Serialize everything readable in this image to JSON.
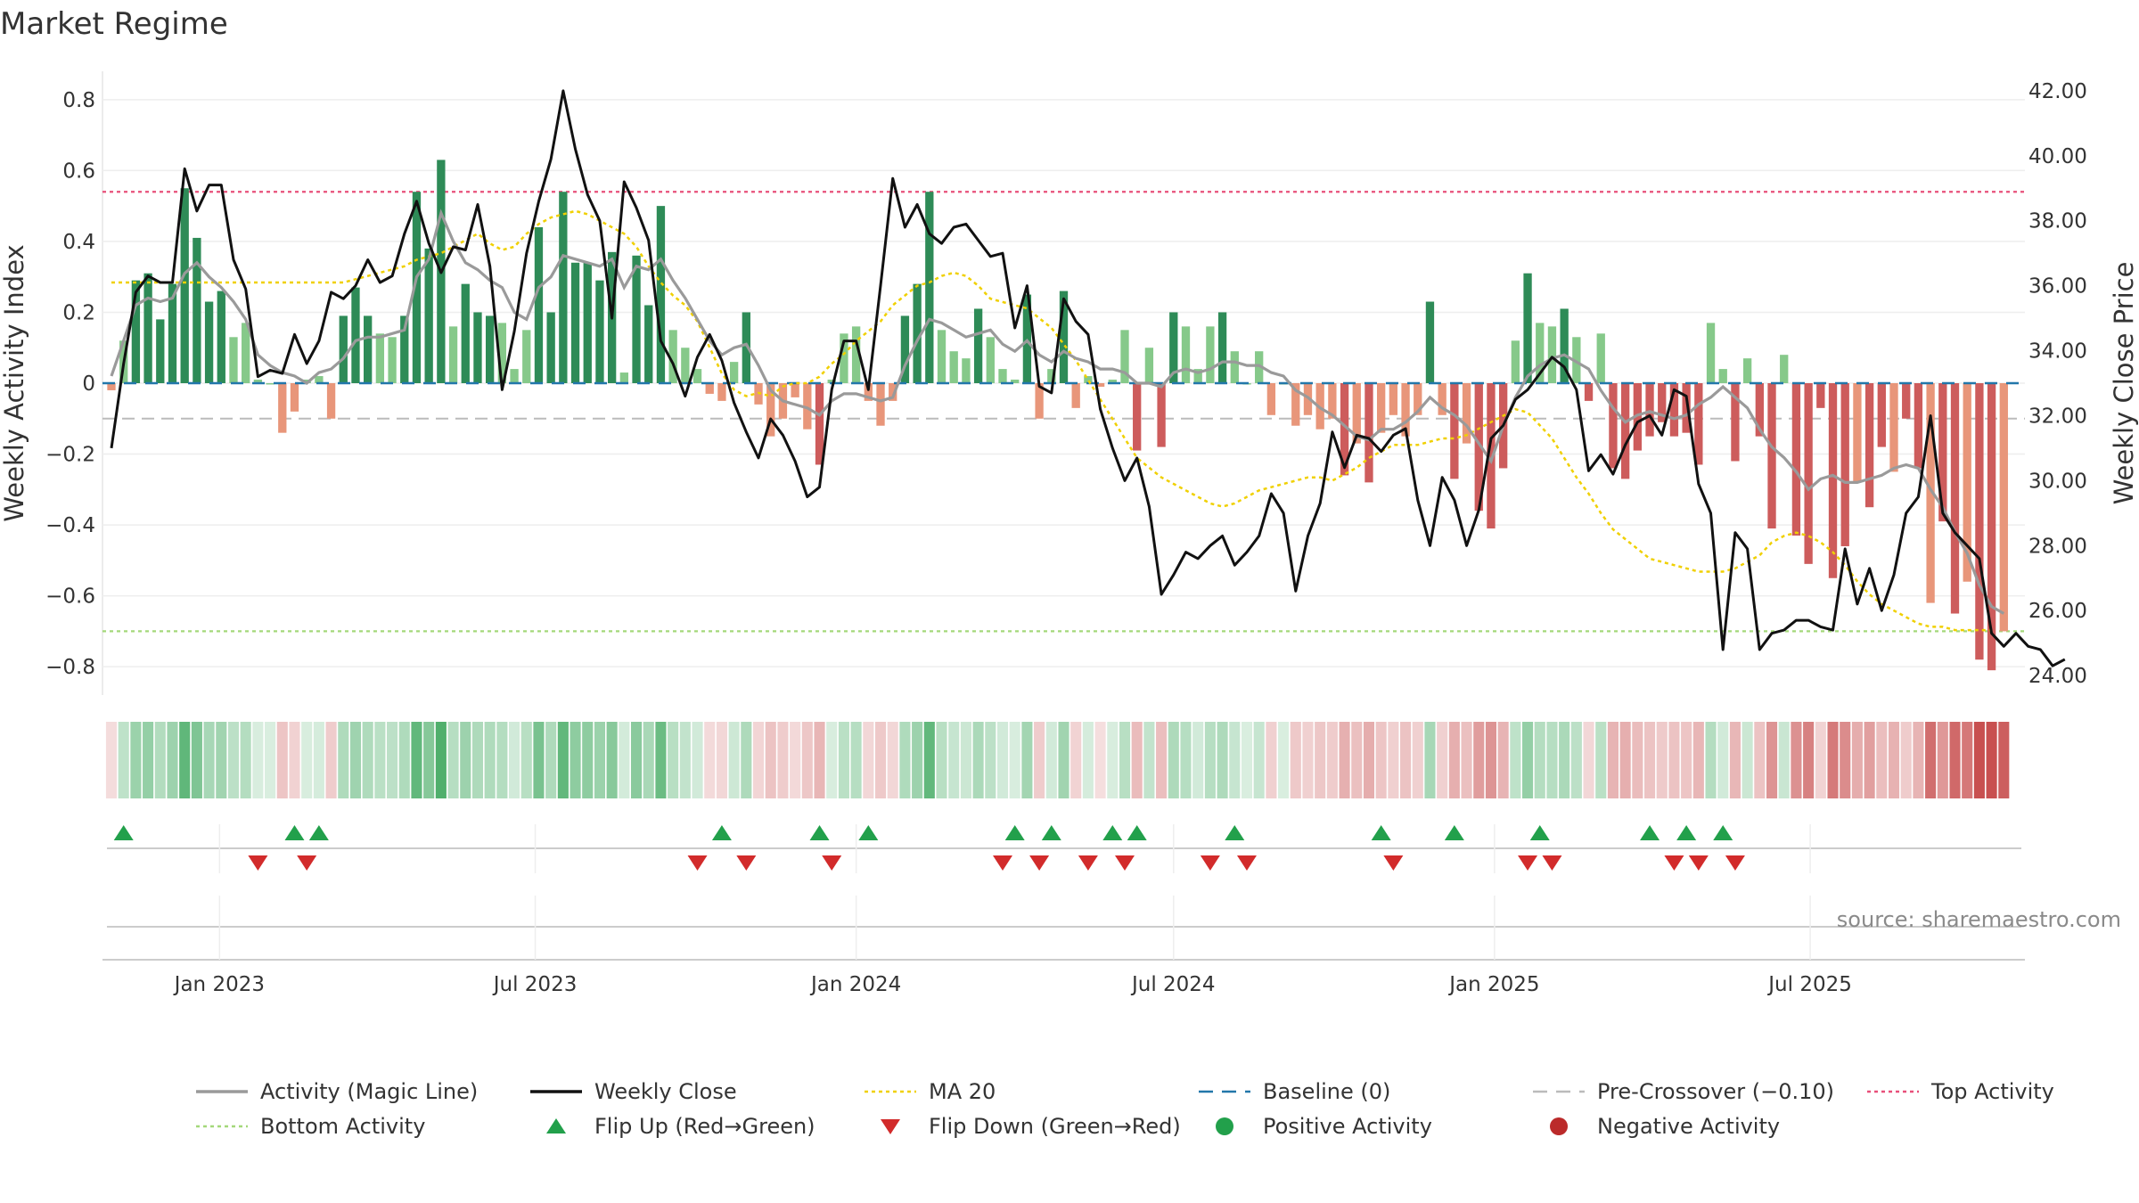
{
  "title": "Market Regime",
  "source": "source: sharemaestro.com",
  "chart_data": {
    "type": "bar",
    "start_date": "2022-10-31",
    "week_count": 157,
    "y_left": {
      "label": "Weekly Activity Index",
      "ylim": [
        -0.88,
        0.88
      ],
      "ticks": [
        0.8,
        0.6,
        0.4,
        0.2,
        0,
        -0.2,
        -0.4,
        -0.6,
        -0.8
      ],
      "tick_labels": [
        "0.8",
        "0.6",
        "0.4",
        "0.2",
        "0",
        "−0.2",
        "−0.4",
        "−0.6",
        "−0.8"
      ]
    },
    "y_right": {
      "label": "Weekly Close Price",
      "ylim": [
        23.4,
        42.6
      ],
      "ticks": [
        42,
        40,
        38,
        36,
        34,
        32,
        30,
        28,
        26,
        24
      ],
      "tick_labels": [
        "42.00",
        "40.00",
        "38.00",
        "36.00",
        "34.00",
        "32.00",
        "30.00",
        "28.00",
        "26.00",
        "24.00"
      ]
    },
    "x_ticks": [
      {
        "date": "2023-01-01",
        "label": "Jan 2023"
      },
      {
        "date": "2023-07-01",
        "label": "Jul 2023"
      },
      {
        "date": "2024-01-01",
        "label": "Jan 2024"
      },
      {
        "date": "2024-07-01",
        "label": "Jul 2024"
      },
      {
        "date": "2025-01-01",
        "label": "Jan 2025"
      },
      {
        "date": "2025-07-01",
        "label": "Jul 2025"
      }
    ],
    "reference_lines": {
      "top_activity": 0.54,
      "bottom_activity": -0.7,
      "baseline": 0,
      "pre_crossover": -0.1
    },
    "series": [
      {
        "name": "Activity",
        "values": [
          -0.02,
          0.12,
          0.29,
          0.31,
          0.18,
          0.28,
          0.55,
          0.41,
          0.23,
          0.26,
          0.13,
          0.17,
          0.01,
          0.0,
          -0.14,
          -0.08,
          0.01,
          0.02,
          -0.1,
          0.19,
          0.27,
          0.19,
          0.14,
          0.13,
          0.19,
          0.54,
          0.38,
          0.63,
          0.16,
          0.28,
          0.2,
          0.19,
          0.17,
          0.04,
          0.15,
          0.44,
          0.2,
          0.54,
          0.34,
          0.34,
          0.29,
          0.37,
          0.03,
          0.36,
          0.22,
          0.5,
          0.15,
          0.1,
          0.04,
          -0.03,
          -0.05,
          0.06,
          0.2,
          -0.06,
          -0.15,
          -0.1,
          -0.04,
          -0.13,
          -0.23,
          0.01,
          0.14,
          0.16,
          -0.05,
          -0.12,
          -0.05,
          0.19,
          0.28,
          0.54,
          0.15,
          0.09,
          0.07,
          0.21,
          0.13,
          0.04,
          0.01,
          0.25,
          -0.1,
          0.04,
          0.26,
          -0.07,
          0.02,
          -0.01,
          0.01,
          0.15,
          -0.19,
          0.1,
          -0.18,
          0.2,
          0.16,
          0.04,
          0.16,
          0.2,
          0.09,
          0.0,
          0.09,
          -0.09,
          0.0,
          -0.12,
          -0.09,
          -0.13,
          -0.1,
          -0.26,
          -0.17,
          -0.28,
          -0.14,
          -0.09,
          -0.15,
          -0.09,
          0.23,
          -0.09,
          -0.27,
          -0.17,
          -0.36,
          -0.41,
          -0.24,
          0.12,
          0.31,
          0.17,
          0.16,
          0.21,
          0.13,
          -0.05,
          0.14,
          -0.24,
          -0.27,
          -0.19,
          -0.15,
          -0.11,
          -0.15,
          -0.14,
          -0.23,
          0.17,
          0.04,
          -0.22,
          0.07,
          -0.15,
          -0.41,
          0.08,
          -0.43,
          -0.51,
          -0.07,
          -0.55,
          -0.46,
          -0.28,
          -0.35,
          -0.18,
          -0.25,
          -0.1,
          -0.24,
          -0.62,
          -0.39,
          -0.65,
          -0.56,
          -0.78,
          -0.81,
          -0.7
        ]
      },
      {
        "name": "Activity (Magic Line)",
        "values": [
          0.02,
          0.12,
          0.22,
          0.24,
          0.23,
          0.24,
          0.31,
          0.34,
          0.3,
          0.27,
          0.23,
          0.18,
          0.08,
          0.05,
          0.03,
          0.02,
          0.0,
          0.03,
          0.04,
          0.07,
          0.12,
          0.13,
          0.13,
          0.14,
          0.15,
          0.3,
          0.35,
          0.48,
          0.4,
          0.34,
          0.32,
          0.29,
          0.27,
          0.2,
          0.18,
          0.27,
          0.3,
          0.36,
          0.35,
          0.34,
          0.33,
          0.35,
          0.27,
          0.33,
          0.32,
          0.35,
          0.29,
          0.24,
          0.18,
          0.12,
          0.08,
          0.1,
          0.11,
          0.05,
          -0.02,
          -0.05,
          -0.06,
          -0.07,
          -0.09,
          -0.05,
          -0.03,
          -0.03,
          -0.04,
          -0.05,
          -0.04,
          0.05,
          0.12,
          0.18,
          0.17,
          0.15,
          0.13,
          0.14,
          0.15,
          0.11,
          0.09,
          0.12,
          0.08,
          0.06,
          0.09,
          0.07,
          0.06,
          0.04,
          0.04,
          0.03,
          0.0,
          0.0,
          -0.01,
          0.03,
          0.04,
          0.03,
          0.04,
          0.06,
          0.06,
          0.05,
          0.05,
          0.03,
          0.02,
          -0.02,
          -0.04,
          -0.07,
          -0.09,
          -0.12,
          -0.15,
          -0.16,
          -0.13,
          -0.13,
          -0.11,
          -0.08,
          -0.04,
          -0.07,
          -0.09,
          -0.12,
          -0.17,
          -0.22,
          -0.12,
          -0.04,
          0.02,
          0.05,
          0.07,
          0.08,
          0.06,
          0.04,
          -0.02,
          -0.07,
          -0.11,
          -0.09,
          -0.08,
          -0.09,
          -0.1,
          -0.09,
          -0.06,
          -0.04,
          -0.01,
          -0.04,
          -0.07,
          -0.13,
          -0.18,
          -0.21,
          -0.25,
          -0.3,
          -0.27,
          -0.26,
          -0.28,
          -0.28,
          -0.27,
          -0.26,
          -0.24,
          -0.23,
          -0.24,
          -0.3,
          -0.35,
          -0.42,
          -0.48,
          -0.57,
          -0.63,
          -0.65
        ]
      },
      {
        "name": "Weekly Close",
        "values": [
          31.0,
          33.6,
          35.8,
          36.3,
          36.1,
          36.1,
          39.6,
          38.3,
          39.1,
          39.1,
          36.8,
          35.9,
          33.2,
          33.4,
          33.3,
          34.5,
          33.6,
          34.3,
          35.8,
          35.6,
          36.0,
          36.8,
          36.1,
          36.3,
          37.6,
          38.6,
          37.3,
          36.4,
          37.2,
          37.1,
          38.5,
          36.6,
          32.8,
          34.6,
          37.0,
          38.6,
          39.9,
          42.0,
          40.2,
          38.8,
          38.0,
          35.0,
          39.2,
          38.4,
          37.4,
          34.3,
          33.6,
          32.6,
          33.8,
          34.5,
          33.7,
          32.4,
          31.5,
          30.7,
          31.9,
          31.4,
          30.6,
          29.5,
          29.8,
          32.8,
          34.3,
          34.3,
          32.8,
          36.0,
          39.3,
          37.8,
          38.5,
          37.6,
          37.3,
          37.8,
          37.9,
          37.4,
          36.9,
          37.0,
          34.7,
          36.0,
          32.9,
          32.7,
          35.6,
          34.9,
          34.5,
          32.2,
          31.0,
          30.0,
          30.7,
          29.2,
          26.5,
          27.1,
          27.8,
          27.6,
          28.0,
          28.3,
          27.4,
          27.8,
          28.3,
          29.6,
          29.0,
          26.6,
          28.3,
          29.3,
          31.5,
          30.4,
          31.4,
          31.3,
          30.9,
          31.4,
          31.6,
          29.4,
          28.0,
          30.1,
          29.4,
          28.0,
          29.1,
          31.3,
          31.7,
          32.5,
          32.8,
          33.3,
          33.8,
          33.5,
          32.8,
          30.3,
          30.8,
          30.2,
          31.1,
          31.8,
          32.0,
          31.4,
          32.8,
          32.6,
          29.9,
          29.0,
          24.8,
          28.4,
          27.9,
          24.8,
          25.3,
          25.4,
          25.7,
          25.7,
          25.5,
          25.4,
          27.9,
          26.2,
          27.3,
          26.0,
          27.1,
          29.0,
          29.5,
          32.0,
          29.0,
          28.4,
          28.0,
          27.6,
          25.3,
          24.9,
          25.3,
          24.9,
          24.8,
          24.3,
          24.5
        ]
      },
      {
        "name": "MA 20",
        "values": [
          36.1,
          36.1,
          36.1,
          36.1,
          36.1,
          36.1,
          36.1,
          36.1,
          36.1,
          36.1,
          36.1,
          36.1,
          36.1,
          36.1,
          36.1,
          36.1,
          36.1,
          36.1,
          36.1,
          36.1,
          36.2,
          36.3,
          36.4,
          36.5,
          36.6,
          36.8,
          36.9,
          37.0,
          37.2,
          37.4,
          37.6,
          37.3,
          37.1,
          37.2,
          37.6,
          37.9,
          38.1,
          38.2,
          38.3,
          38.2,
          38.0,
          37.8,
          37.6,
          37.2,
          36.6,
          36.1,
          35.7,
          35.4,
          34.9,
          34.1,
          33.3,
          32.8,
          32.6,
          32.7,
          32.6,
          32.9,
          33.0,
          33.0,
          33.2,
          33.6,
          33.9,
          34.3,
          34.6,
          34.9,
          35.4,
          35.7,
          36.0,
          36.1,
          36.3,
          36.4,
          36.3,
          36.0,
          35.6,
          35.5,
          35.4,
          35.3,
          35.0,
          34.7,
          34.2,
          33.7,
          33.1,
          32.5,
          31.9,
          31.3,
          30.7,
          30.4,
          30.1,
          29.9,
          29.7,
          29.5,
          29.3,
          29.2,
          29.3,
          29.5,
          29.7,
          29.8,
          29.9,
          30.0,
          30.1,
          30.1,
          30.0,
          30.2,
          30.4,
          30.7,
          30.9,
          31.1,
          31.1,
          31.1,
          31.2,
          31.3,
          31.3,
          31.4,
          31.6,
          31.8,
          32.0,
          32.2,
          32.1,
          31.7,
          31.3,
          30.7,
          30.1,
          29.6,
          29.0,
          28.5,
          28.2,
          27.9,
          27.6,
          27.5,
          27.4,
          27.3,
          27.2,
          27.2,
          27.2,
          27.3,
          27.5,
          27.7,
          28.1,
          28.3,
          28.4,
          28.3,
          28.1,
          27.8,
          27.4,
          26.9,
          26.5,
          26.2,
          26.0,
          25.8,
          25.6,
          25.5,
          25.5,
          25.4,
          25.4,
          25.4,
          25.4
        ]
      }
    ],
    "flips_up_week_index": [
      1,
      15,
      17,
      50,
      58,
      62,
      74,
      77,
      82,
      84,
      92,
      104,
      110,
      117,
      126,
      129,
      132
    ],
    "flips_down_week_index": [
      12,
      16,
      48,
      52,
      59,
      73,
      76,
      80,
      83,
      90,
      93,
      105,
      116,
      118,
      128,
      130,
      133
    ],
    "legend": [
      {
        "label": "Activity (Magic Line)",
        "kind": "line",
        "color": "#9a9a9a"
      },
      {
        "label": "Weekly Close",
        "kind": "line",
        "color": "#111111"
      },
      {
        "label": "MA 20",
        "kind": "dotted",
        "color": "#f0d000"
      },
      {
        "label": "Baseline (0)",
        "kind": "dashed",
        "color": "#2277aa"
      },
      {
        "label": "Pre-Crossover (−0.10)",
        "kind": "dashed",
        "color": "#bbbbbb"
      },
      {
        "label": "Top Activity",
        "kind": "dotted",
        "color": "#e8507a"
      },
      {
        "label": "Bottom Activity",
        "kind": "dotted",
        "color": "#a4d87a"
      },
      {
        "label": "Flip Up (Red→Green)",
        "kind": "tri-up",
        "color": "#22a04b"
      },
      {
        "label": "Flip Down (Green→Red)",
        "kind": "tri-down",
        "color": "#d22b2b"
      },
      {
        "label": "Positive Activity",
        "kind": "dot",
        "color": "#22a04b"
      },
      {
        "label": "Negative Activity",
        "kind": "dot",
        "color": "#bb2a2a"
      }
    ],
    "colors": {
      "pos_strong": "#2e8b57",
      "pos_light": "#86c98a",
      "neg_strong": "#cd5c5c",
      "neg_light": "#e8967a",
      "magic": "#9a9a9a",
      "close": "#111111",
      "ma": "#f0d000",
      "top": "#e8507a",
      "bottom": "#a4d87a",
      "baseline": "#2277aa",
      "precross": "#bbbbbb",
      "flip_up": "#22a04b",
      "flip_down": "#d22b2b"
    }
  }
}
